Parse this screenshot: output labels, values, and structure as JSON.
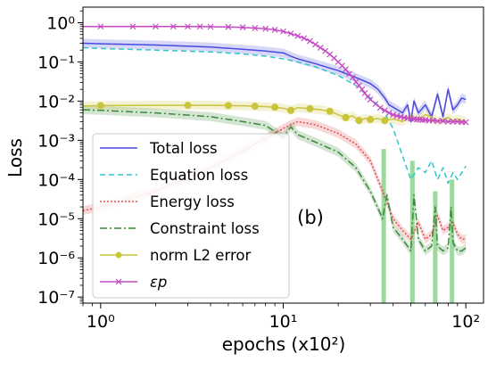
{
  "chart_data": {
    "type": "line",
    "panel_label": "(b)",
    "xlabel": "epochs (x10²)",
    "ylabel": "Loss",
    "xscale": "log",
    "yscale": "log",
    "xlim": [
      0.8,
      125
    ],
    "ylim": [
      7e-08,
      2.5
    ],
    "grid": false,
    "legend_position": "lower-left",
    "x_ticks": [
      {
        "value": 1,
        "label": "10⁰"
      },
      {
        "value": 10,
        "label": "10¹"
      },
      {
        "value": 100,
        "label": "10²"
      }
    ],
    "y_ticks": [
      {
        "value": 1,
        "label": "10⁰"
      },
      {
        "value": 0.1,
        "label": "10⁻¹"
      },
      {
        "value": 0.01,
        "label": "10⁻²"
      },
      {
        "value": 0.001,
        "label": "10⁻³"
      },
      {
        "value": 0.0001,
        "label": "10⁻⁴"
      },
      {
        "value": 1e-05,
        "label": "10⁻⁵"
      },
      {
        "value": 1e-06,
        "label": "10⁻⁶"
      },
      {
        "value": 1e-07,
        "label": "10⁻⁷"
      }
    ],
    "series": [
      {
        "name": "Total loss",
        "color": "#4a4ae0",
        "dash": "",
        "marker": "none",
        "band": true,
        "x": [
          0.8,
          1,
          2,
          4,
          6,
          8,
          10,
          11,
          12,
          15,
          20,
          25,
          30,
          33,
          36,
          38,
          40,
          45,
          48,
          50,
          52,
          55,
          60,
          65,
          70,
          75,
          80,
          85,
          90,
          95,
          100
        ],
        "y": [
          0.3,
          0.29,
          0.27,
          0.24,
          0.21,
          0.19,
          0.17,
          0.14,
          0.12,
          0.09,
          0.06,
          0.04,
          0.028,
          0.02,
          0.012,
          0.008,
          0.007,
          0.005,
          0.008,
          0.003,
          0.01,
          0.005,
          0.008,
          0.004,
          0.015,
          0.004,
          0.02,
          0.006,
          0.008,
          0.012,
          0.011
        ]
      },
      {
        "name": "Equation loss",
        "color": "#2fc7c9",
        "dash": "6,4",
        "marker": "none",
        "band": false,
        "x": [
          0.8,
          1,
          2,
          4,
          6,
          8,
          10,
          12,
          15,
          20,
          25,
          30,
          35,
          40,
          45,
          50,
          55,
          60,
          65,
          70,
          75,
          80,
          85,
          90,
          95,
          100
        ],
        "y": [
          0.23,
          0.22,
          0.2,
          0.18,
          0.16,
          0.14,
          0.12,
          0.1,
          0.075,
          0.045,
          0.025,
          0.012,
          0.006,
          0.002,
          0.0004,
          0.0001,
          0.0002,
          0.00015,
          0.0003,
          0.0001,
          0.0002,
          8e-05,
          0.00015,
          0.0001,
          0.00015,
          0.00022
        ]
      },
      {
        "name": "Energy loss",
        "color": "#e05050",
        "dash": "2,2",
        "marker": "none",
        "band": true,
        "x": [
          0.8,
          1,
          2,
          4,
          7,
          10,
          11,
          12,
          15,
          20,
          25,
          30,
          33,
          35,
          40,
          45,
          50,
          55,
          60,
          65,
          70,
          75,
          80,
          85,
          90,
          95,
          100
        ],
        "y": [
          1.6e-05,
          2e-05,
          5e-05,
          0.0002,
          0.0008,
          0.002,
          0.0025,
          0.003,
          0.0025,
          0.0015,
          0.0008,
          0.0003,
          0.0001,
          5e-05,
          1e-05,
          5e-06,
          3e-06,
          8e-06,
          3e-06,
          4e-06,
          1.2e-05,
          5e-06,
          6e-06,
          8e-06,
          4e-06,
          3e-06,
          3e-06
        ]
      },
      {
        "name": "Constraint loss",
        "color": "#3a8a3a",
        "dash": "8,3,2,3",
        "marker": "none",
        "band": true,
        "x": [
          0.8,
          1,
          2,
          4,
          6,
          8,
          10,
          11,
          12,
          15,
          20,
          25,
          30,
          35,
          37,
          40,
          45,
          50,
          52,
          55,
          60,
          65,
          68,
          70,
          75,
          80,
          83,
          85,
          90,
          95,
          100
        ],
        "y": [
          0.006,
          0.0058,
          0.005,
          0.004,
          0.003,
          0.0024,
          0.0012,
          0.0022,
          0.0014,
          0.0009,
          0.0005,
          0.0002,
          5e-05,
          1e-05,
          4e-05,
          6e-06,
          3e-06,
          1.5e-06,
          4e-05,
          3e-06,
          1.5e-06,
          2e-06,
          2e-05,
          2e-06,
          1.5e-06,
          1.8e-06,
          2e-05,
          2.5e-06,
          1.5e-06,
          1.5e-06,
          1.8e-06
        ]
      },
      {
        "name": "norm L2 error",
        "color": "#c9c43a",
        "dash": "",
        "marker": "circle",
        "band": true,
        "x": [
          0.8,
          1,
          2,
          3,
          4,
          5,
          6,
          7,
          8,
          9,
          10,
          11,
          12,
          14,
          16,
          18,
          20,
          22,
          24,
          26,
          28,
          30,
          33,
          36,
          40,
          45,
          50,
          55,
          60,
          65,
          70,
          75,
          80,
          85,
          90,
          95,
          100
        ],
        "y": [
          0.0075,
          0.0077,
          0.0078,
          0.0078,
          0.0078,
          0.0077,
          0.0076,
          0.0074,
          0.0072,
          0.007,
          0.0066,
          0.0058,
          0.0068,
          0.0064,
          0.006,
          0.0055,
          0.0045,
          0.0038,
          0.0042,
          0.0032,
          0.0036,
          0.0034,
          0.0036,
          0.0032,
          0.0035,
          0.003,
          0.004,
          0.0035,
          0.0045,
          0.004,
          0.003,
          0.0034,
          0.0038,
          0.0032,
          0.0035,
          0.0032,
          0.0031
        ]
      },
      {
        "name": "εp",
        "color": "#c44ac4",
        "dash": "",
        "marker": "x",
        "band": false,
        "x": [
          0.8,
          1,
          1.5,
          2,
          2.5,
          3,
          3.5,
          4,
          5,
          6,
          7,
          8,
          9,
          10,
          11,
          12,
          13,
          14,
          15,
          16,
          17,
          18,
          19,
          20,
          21,
          22,
          23,
          24,
          25,
          26,
          27,
          28,
          29,
          30,
          32,
          34,
          36,
          38,
          40,
          42,
          44,
          46,
          48,
          50,
          52,
          54,
          56,
          58,
          60,
          63,
          66,
          70,
          75,
          80,
          85,
          90,
          95,
          100
        ],
        "y": [
          0.8,
          0.8,
          0.8,
          0.8,
          0.8,
          0.8,
          0.8,
          0.79,
          0.78,
          0.76,
          0.73,
          0.7,
          0.66,
          0.6,
          0.53,
          0.46,
          0.4,
          0.34,
          0.28,
          0.23,
          0.19,
          0.155,
          0.125,
          0.1,
          0.08,
          0.065,
          0.05,
          0.04,
          0.031,
          0.025,
          0.02,
          0.016,
          0.013,
          0.011,
          0.0085,
          0.0068,
          0.0058,
          0.005,
          0.0045,
          0.0042,
          0.004,
          0.0038,
          0.0037,
          0.0036,
          0.0035,
          0.0034,
          0.0034,
          0.0033,
          0.0033,
          0.0032,
          0.0032,
          0.0031,
          0.0031,
          0.003,
          0.003,
          0.003,
          0.0029,
          0.0029
        ]
      }
    ],
    "spikes": [
      {
        "x": 35.5,
        "y_low": 7e-08,
        "y_high": 0.0006,
        "color": "#7ccb7c"
      },
      {
        "x": 51,
        "y_low": 7e-08,
        "y_high": 0.0003,
        "color": "#7ccb7c"
      },
      {
        "x": 68,
        "y_low": 7e-08,
        "y_high": 5e-05,
        "color": "#7ccb7c"
      },
      {
        "x": 84,
        "y_low": 7e-08,
        "y_high": 0.0001,
        "color": "#7ccb7c"
      }
    ]
  }
}
